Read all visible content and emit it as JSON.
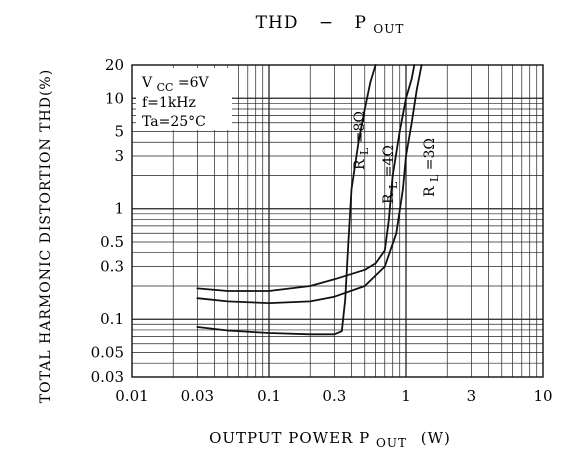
{
  "chart_data": {
    "type": "line",
    "title_main": "THD",
    "title_sep": "−",
    "title_sym": "P",
    "title_sub": "OUT",
    "xlabel": "OUTPUT POWER P",
    "xlabel_sub": "OUT",
    "xlabel_unit": "(W)",
    "ylabel": "TOTAL HARMONIC DISTORTION THD(%)",
    "x_scale": "log",
    "y_scale": "log",
    "xlim": [
      0.01,
      10
    ],
    "ylim": [
      0.03,
      20
    ],
    "grid": true,
    "x_ticks": [
      {
        "value": 0.01,
        "label": "0.01"
      },
      {
        "value": 0.03,
        "label": "0.03"
      },
      {
        "value": 0.1,
        "label": "0.1"
      },
      {
        "value": 0.3,
        "label": "0.3"
      },
      {
        "value": 1,
        "label": "1"
      },
      {
        "value": 3,
        "label": "3"
      },
      {
        "value": 10,
        "label": "10"
      }
    ],
    "y_ticks": [
      {
        "value": 0.03,
        "label": "0.03"
      },
      {
        "value": 0.05,
        "label": "0.05"
      },
      {
        "value": 0.1,
        "label": "0.1"
      },
      {
        "value": 0.3,
        "label": "0.3"
      },
      {
        "value": 0.5,
        "label": "0.5"
      },
      {
        "value": 1,
        "label": "1"
      },
      {
        "value": 3,
        "label": "3"
      },
      {
        "value": 5,
        "label": "5"
      },
      {
        "value": 10,
        "label": "10"
      },
      {
        "value": 20,
        "label": "20"
      }
    ],
    "conditions": {
      "vcc_sym": "V",
      "vcc_sub": "CC",
      "vcc_val": "=6V",
      "freq": "f=1kHz",
      "temp": "Ta=25°C"
    },
    "series": [
      {
        "label_sym": "R",
        "label_sub": "L",
        "label_val": "=8Ω",
        "points": [
          [
            0.03,
            0.085
          ],
          [
            0.05,
            0.079
          ],
          [
            0.1,
            0.075
          ],
          [
            0.2,
            0.073
          ],
          [
            0.3,
            0.073
          ],
          [
            0.34,
            0.078
          ],
          [
            0.36,
            0.15
          ],
          [
            0.38,
            0.5
          ],
          [
            0.4,
            1.5
          ],
          [
            0.45,
            4
          ],
          [
            0.5,
            8
          ],
          [
            0.55,
            14
          ],
          [
            0.6,
            20
          ]
        ]
      },
      {
        "label_sym": "R",
        "label_sub": "L",
        "label_val": "=4Ω",
        "points": [
          [
            0.03,
            0.19
          ],
          [
            0.05,
            0.18
          ],
          [
            0.1,
            0.18
          ],
          [
            0.2,
            0.2
          ],
          [
            0.3,
            0.23
          ],
          [
            0.5,
            0.28
          ],
          [
            0.6,
            0.32
          ],
          [
            0.7,
            0.42
          ],
          [
            0.75,
            0.8
          ],
          [
            0.8,
            2
          ],
          [
            0.9,
            5
          ],
          [
            1.0,
            10
          ],
          [
            1.1,
            15
          ],
          [
            1.15,
            20
          ]
        ]
      },
      {
        "label_sym": "R",
        "label_sub": "L",
        "label_val": "=3Ω",
        "points": [
          [
            0.03,
            0.155
          ],
          [
            0.05,
            0.145
          ],
          [
            0.1,
            0.14
          ],
          [
            0.2,
            0.145
          ],
          [
            0.3,
            0.16
          ],
          [
            0.5,
            0.2
          ],
          [
            0.7,
            0.3
          ],
          [
            0.85,
            0.6
          ],
          [
            0.95,
            1.5
          ],
          [
            1.0,
            3
          ],
          [
            1.1,
            6
          ],
          [
            1.2,
            12
          ],
          [
            1.3,
            20
          ]
        ]
      }
    ]
  }
}
